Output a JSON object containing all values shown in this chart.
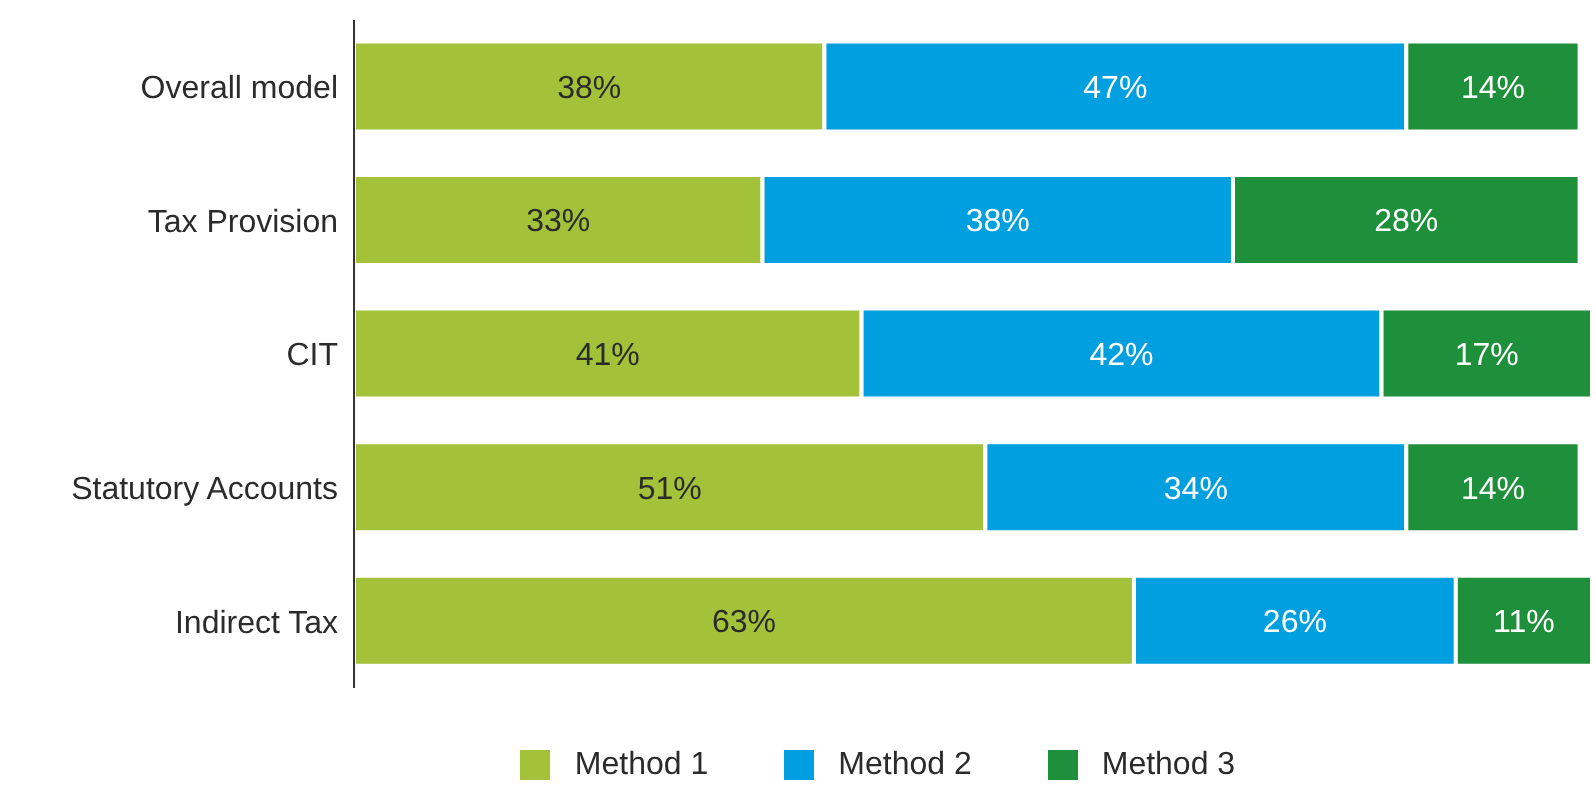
{
  "chart_data": {
    "type": "bar",
    "orientation": "horizontal",
    "stacked": true,
    "categories": [
      "Overall model",
      "Tax Provision",
      "CIT",
      "Statutory Accounts",
      "Indirect Tax"
    ],
    "series": [
      {
        "name": "Method 1",
        "color": "#a3c23a",
        "values": [
          38,
          33,
          41,
          51,
          63
        ],
        "value_labels": [
          "38%",
          "33%",
          "41%",
          "51%",
          "63%"
        ]
      },
      {
        "name": "Method 2",
        "color": "#009fdf",
        "values": [
          47,
          38,
          42,
          34,
          26
        ],
        "value_labels": [
          "47%",
          "38%",
          "42%",
          "34%",
          "26%"
        ]
      },
      {
        "name": "Method 3",
        "color": "#1e8f3a",
        "values": [
          14,
          28,
          17,
          14,
          11
        ],
        "value_labels": [
          "14%",
          "28%",
          "17%",
          "14%",
          "11%"
        ]
      }
    ],
    "tick_labels": "y",
    "legend": "bottom"
  }
}
